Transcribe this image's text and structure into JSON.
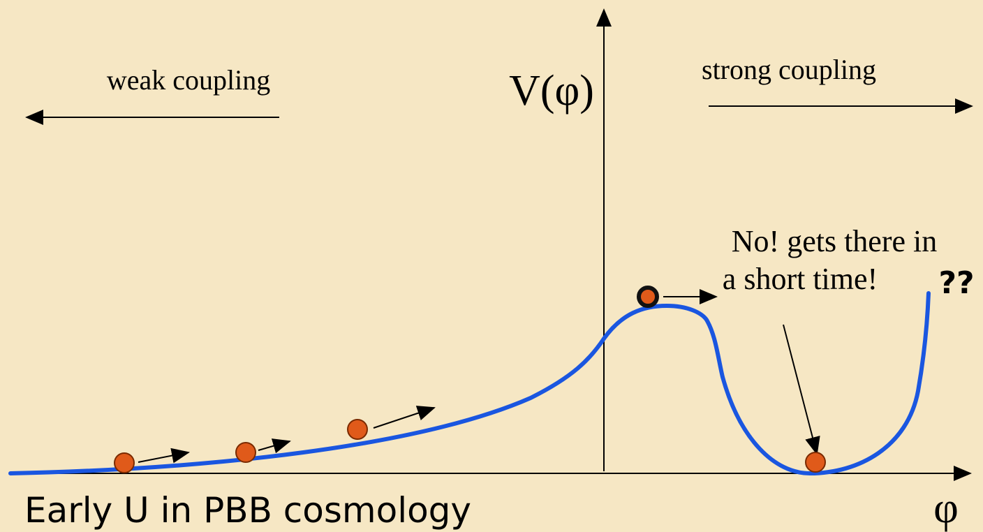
{
  "labels": {
    "weak": "weak coupling",
    "strong": "strong coupling",
    "potential": "V(φ)",
    "note_line1": "No! gets there in",
    "note_line2": "a short time!",
    "question": "??",
    "caption": "Early U in PBB cosmology",
    "field": "φ"
  }
}
